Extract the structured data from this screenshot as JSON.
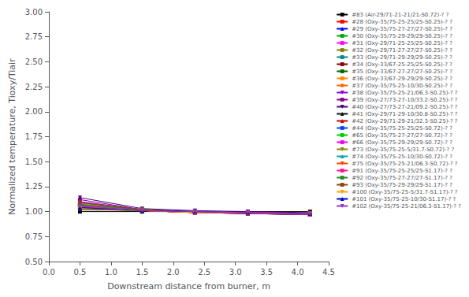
{
  "chart_data": {
    "type": "line",
    "title": "",
    "xlabel": "Downstream distance from burner, m",
    "ylabel": "Normalized temperature, Tioxy/Tiair",
    "xlim": [
      0.0,
      4.5
    ],
    "ylim": [
      0.5,
      3.0
    ],
    "xticks": [
      {
        "value": 0.0,
        "label": "0.0"
      },
      0.5,
      {
        "value": 1.0,
        "label": "1.0"
      },
      1.5,
      {
        "value": 2.0,
        "label": "2.0"
      },
      2.5,
      {
        "value": 3.0,
        "label": "3.0"
      },
      3.5,
      {
        "value": 4.0,
        "label": "4.0"
      },
      4.5
    ],
    "yticks": [
      {
        "value": 0.5,
        "label": "0.50"
      },
      0.75,
      {
        "value": 1.0,
        "label": "1.00"
      },
      1.25,
      {
        "value": 1.5,
        "label": "1.50"
      },
      1.75,
      {
        "value": 2.0,
        "label": "2.00"
      },
      2.25,
      {
        "value": 2.5,
        "label": "2.50"
      },
      2.75,
      {
        "value": 3.0,
        "label": "3.00"
      }
    ],
    "grid": false,
    "legend": "upper right",
    "x": [
      0.5,
      1.5,
      2.35,
      3.2,
      4.2
    ],
    "series": [
      {
        "name": "#83 (Air-29/71-21-21/21-S0.72)-? ?",
        "color": "#000000",
        "marker": "square",
        "values": [
          1.0,
          1.0,
          1.0,
          1.0,
          1.0
        ]
      },
      {
        "name": "#28 (Oxy-35/75-25-25/25-S0.25)-? ?",
        "color": "#FF0000",
        "marker": "square",
        "values": [
          1.05,
          1.01,
          0.99,
          0.98,
          0.97
        ]
      },
      {
        "name": "#29 (Oxy-35/75-27-27/27-S0.25)-? ?",
        "color": "#0000FF",
        "marker": "triangle-up",
        "values": [
          1.08,
          1.02,
          1.0,
          0.99,
          0.98
        ]
      },
      {
        "name": "#30 (Oxy-35/75-29-29/29-S0.25)-? ?",
        "color": "#00AA00",
        "marker": "square",
        "values": [
          1.06,
          1.01,
          0.99,
          0.98,
          0.97
        ]
      },
      {
        "name": "#31 (Oxy-29/71-25-25/25-S0.25)-? ?",
        "color": "#FF00FF",
        "marker": "square",
        "values": [
          1.04,
          1.01,
          1.0,
          0.99,
          0.98
        ]
      },
      {
        "name": "#32 (Oxy-29/71-27-27/27-S0.25)-? ?",
        "color": "#808000",
        "marker": "square",
        "values": [
          1.07,
          1.02,
          1.0,
          0.99,
          0.98
        ]
      },
      {
        "name": "#33 (Oxy-29/71-29-29/29-S0.25)-? ?",
        "color": "#008B8B",
        "marker": "square",
        "values": [
          1.09,
          1.02,
          1.0,
          0.99,
          0.98
        ]
      },
      {
        "name": "#34 (Oxy-33/67-25-25/25-S0.25)-? ?",
        "color": "#8B0000",
        "marker": "square",
        "values": [
          1.05,
          1.01,
          0.99,
          0.98,
          0.97
        ]
      },
      {
        "name": "#35 (Oxy-33/67-27-27/27-S0.25)-? ?",
        "color": "#006400",
        "marker": "square",
        "values": [
          1.07,
          1.02,
          1.0,
          0.99,
          0.98
        ]
      },
      {
        "name": "#36 (Oxy-33/67-29-29/29-S0.25)-? ?",
        "color": "#FF8C00",
        "marker": "square",
        "values": [
          1.08,
          1.02,
          1.0,
          0.99,
          0.98
        ]
      },
      {
        "name": "#37 (Oxy-35/75-25-10/30-S0.25)-? ?",
        "color": "#FF6600",
        "marker": "circle",
        "values": [
          1.03,
          1.01,
          0.99,
          0.99,
          0.98
        ]
      },
      {
        "name": "#38 (Oxy-35/75-25-21/06.3-S0.25)-? ?",
        "color": "#9400D3",
        "marker": "triangle-down",
        "values": [
          1.1,
          1.02,
          0.99,
          0.99,
          0.98
        ]
      },
      {
        "name": "#39 (Oxy-27/73-27-10/33.2-S0.25)-? ?",
        "color": "#8B008B",
        "marker": "square",
        "values": [
          1.12,
          1.02,
          1.0,
          1.0,
          0.98
        ]
      },
      {
        "name": "#40 (Oxy-27/73-27-21/09.2-S0.25)-? ?",
        "color": "#4B0082",
        "marker": "triangle-down",
        "values": [
          1.14,
          1.03,
          1.01,
          1.0,
          0.99
        ]
      },
      {
        "name": "#41 (Oxy-29/71-29-10/30.8-S0.25)-? ?",
        "color": "#111111",
        "marker": "triangle-up",
        "values": [
          1.02,
          1.01,
          0.99,
          0.98,
          0.97
        ]
      },
      {
        "name": "#42 (Oxy-29/71-29-21/32.3-S0.25)-? ?",
        "color": "#CC0000",
        "marker": "triangle-up",
        "values": [
          1.04,
          1.01,
          0.99,
          0.99,
          0.97
        ]
      },
      {
        "name": "#44 (Oxy-35/75-25-25/25-S0.72)-? ?",
        "color": "#0044FF",
        "marker": "square",
        "values": [
          1.05,
          1.01,
          0.99,
          0.98,
          0.97
        ]
      },
      {
        "name": "#65 (Oxy-35/75-27-27/27-S0.72)-? ?",
        "color": "#00CC00",
        "marker": "square",
        "values": [
          1.07,
          1.02,
          1.0,
          0.99,
          0.98
        ]
      },
      {
        "name": "#66 (Oxy-35/75-29-29/29-S0.72)-? ?",
        "color": "#EE00EE",
        "marker": "square",
        "values": [
          1.09,
          1.02,
          1.0,
          0.99,
          0.98
        ]
      },
      {
        "name": "#73 (Oxy-35/75-25-5/31.7-S0.72)-? ?",
        "color": "#888800",
        "marker": "triangle-down",
        "values": [
          1.03,
          1.01,
          0.99,
          0.99,
          0.98
        ]
      },
      {
        "name": "#74 (Oxy-35/75-25-10/30-S0.72)-? ?",
        "color": "#00AAAA",
        "marker": "triangle-up",
        "values": [
          1.04,
          1.01,
          1.0,
          0.99,
          0.98
        ]
      },
      {
        "name": "#75 (Oxy-35/75-25-21/06.3-S0.72)-? ?",
        "color": "#FF4400",
        "marker": "triangle-down",
        "values": [
          1.06,
          1.01,
          0.99,
          0.99,
          0.98
        ]
      },
      {
        "name": "#91 (Oxy-35/75-25-25/25-S1.17)-? ?",
        "color": "#FF1493",
        "marker": "square",
        "values": [
          1.05,
          1.01,
          0.99,
          0.98,
          0.97
        ]
      },
      {
        "name": "#92 (Oxy-35/75-27-27/27-S1.17)-? ?",
        "color": "#228B22",
        "marker": "square",
        "values": [
          1.07,
          1.02,
          1.0,
          0.99,
          0.98
        ]
      },
      {
        "name": "#93 (Oxy-35/75-29-29/29-S1.17)-? ?",
        "color": "#8B4513",
        "marker": "square",
        "values": [
          1.09,
          1.02,
          1.0,
          0.99,
          0.98
        ]
      },
      {
        "name": "#100 (Oxy-35/75-25-5/31.7-S1.17)-? ?",
        "color": "#FFA500",
        "marker": "triangle-down",
        "values": [
          1.03,
          1.01,
          0.99,
          0.99,
          0.98
        ]
      },
      {
        "name": "#101 (Oxy-35/75-25-10/30-S1.17)-? ?",
        "color": "#0000CD",
        "marker": "triangle-up",
        "values": [
          1.04,
          1.01,
          1.0,
          0.99,
          0.98
        ]
      },
      {
        "name": "#102 (Oxy-35/75-25-21/06.3-S1.17)-? ?",
        "color": "#9932CC",
        "marker": "triangle-down",
        "values": [
          1.06,
          1.01,
          1.0,
          0.99,
          0.98
        ]
      }
    ]
  }
}
